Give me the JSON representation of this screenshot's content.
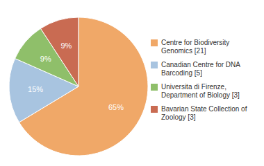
{
  "chart_data": {
    "type": "pie",
    "categories": [
      "Centre for Biodiversity\nGenomics [21]",
      "Canadian Centre for DNA\nBarcoding [5]",
      "Universita di Firenze,\nDepartment of Biology [3]",
      "Bavarian State Collection of\nZoology [3]"
    ],
    "values": [
      65,
      15,
      9,
      9
    ],
    "value_labels": [
      "65%",
      "15%",
      "9%",
      "9%"
    ],
    "data_labels": true,
    "colors": [
      "#F0A868",
      "#A8C4E0",
      "#8FBF6A",
      "#C96B52"
    ],
    "legend": "right"
  }
}
